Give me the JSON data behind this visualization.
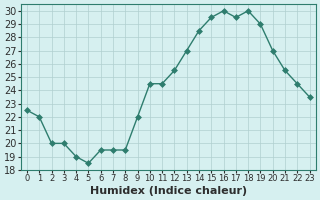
{
  "x": [
    0,
    1,
    2,
    3,
    4,
    5,
    6,
    7,
    8,
    9,
    10,
    11,
    12,
    13,
    14,
    15,
    16,
    17,
    18,
    19,
    20,
    21,
    22,
    23
  ],
  "y": [
    22.5,
    22.0,
    20.0,
    20.0,
    19.0,
    18.5,
    19.5,
    19.5,
    19.5,
    22.0,
    24.5,
    24.5,
    25.5,
    27.0,
    28.5,
    29.5,
    30.0,
    29.5,
    30.0,
    29.0,
    27.0,
    25.5,
    24.5,
    23.5
  ],
  "line_color": "#2e7d6e",
  "marker": "D",
  "marker_size": 3,
  "bg_color": "#d6f0f0",
  "grid_color": "#b0d0d0",
  "xlabel": "Humidex (Indice chaleur)",
  "ylabel": "",
  "xlim": [
    -0.5,
    23.5
  ],
  "ylim": [
    18,
    30.5
  ],
  "yticks": [
    18,
    19,
    20,
    21,
    22,
    23,
    24,
    25,
    26,
    27,
    28,
    29,
    30
  ],
  "xtick_labels": [
    "0",
    "1",
    "2",
    "3",
    "4",
    "5",
    "6",
    "7",
    "8",
    "9",
    "10",
    "11",
    "12",
    "13",
    "14",
    "15",
    "16",
    "17",
    "18",
    "19",
    "20",
    "21",
    "22",
    "23"
  ],
  "tick_fontsize": 7,
  "xtick_fontsize": 6,
  "xlabel_fontsize": 8,
  "label_color": "#2e2e2e",
  "spine_color": "#2e7d6e"
}
